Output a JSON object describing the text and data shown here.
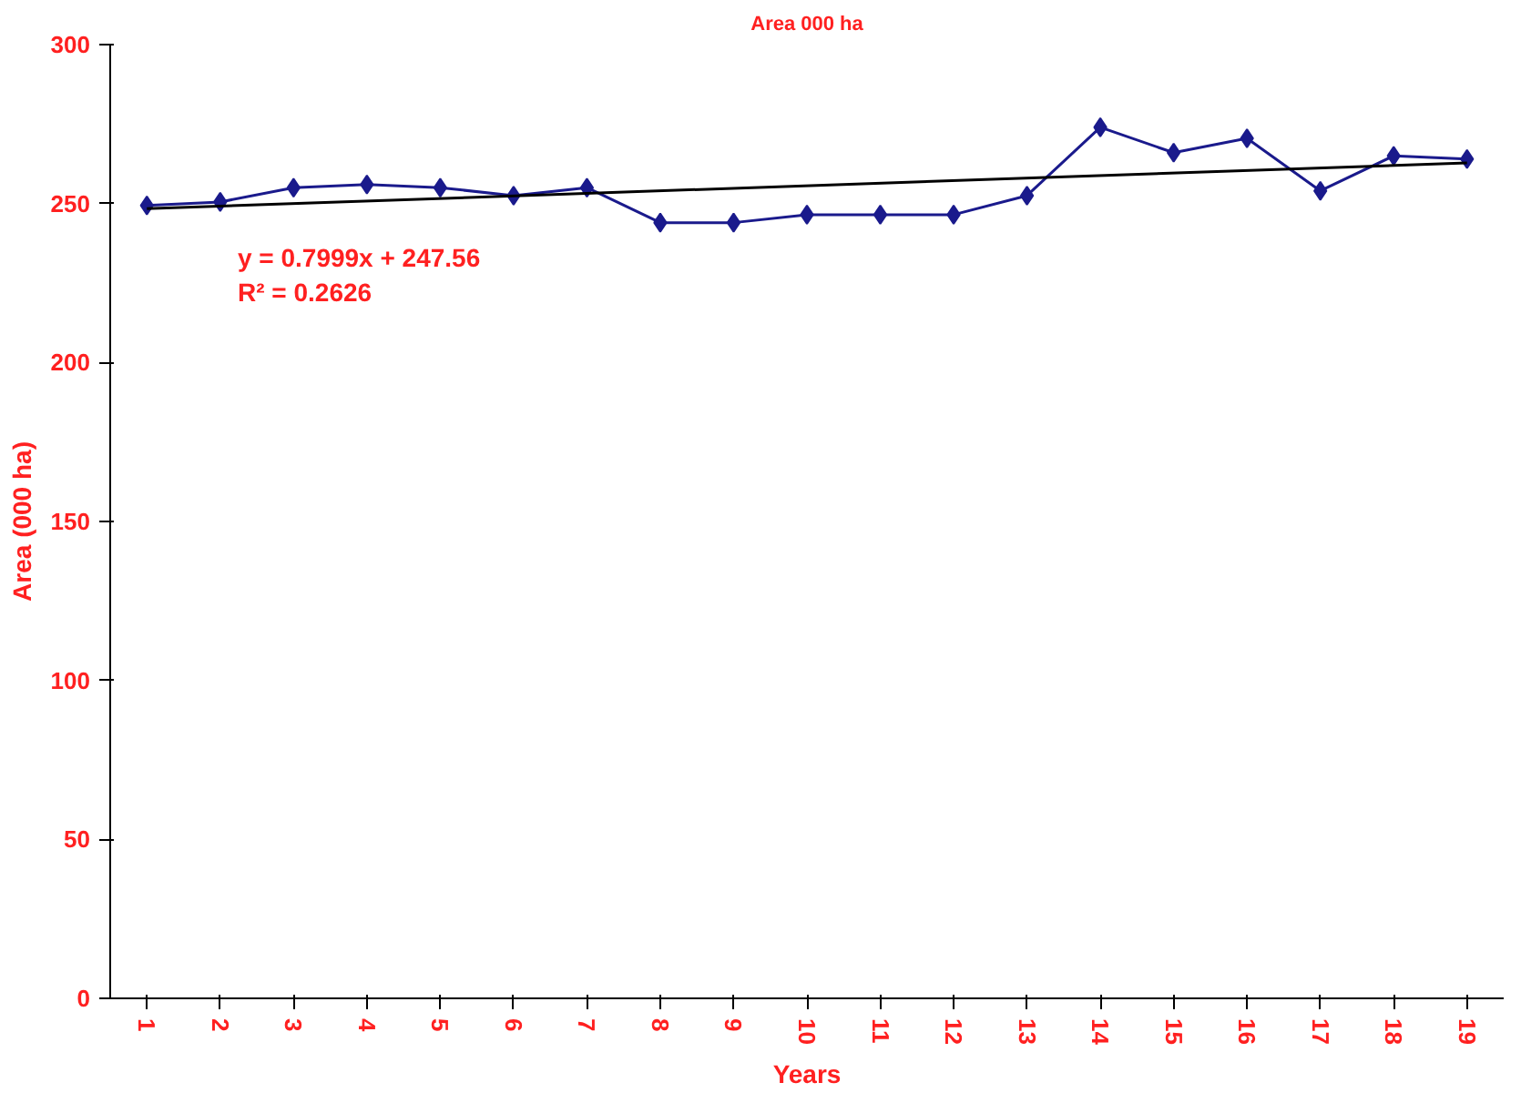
{
  "chart_data": {
    "type": "line",
    "title": "Area 000 ha",
    "xlabel": "Years",
    "ylabel": "Area (000 ha)",
    "categories": [
      "1",
      "2",
      "3",
      "4",
      "5",
      "6",
      "7",
      "8",
      "9",
      "10",
      "11",
      "12",
      "13",
      "14",
      "15",
      "16",
      "17",
      "18",
      "19"
    ],
    "series": [
      {
        "color": "#1a1a8c",
        "marker": "diamond",
        "values": [
          249.4,
          250.5,
          255,
          256,
          255,
          252.5,
          255,
          244,
          244,
          246.5,
          246.5,
          246.5,
          252.5,
          274,
          266,
          270.5,
          254,
          265,
          264
        ]
      },
      {
        "type": "line",
        "color": "#000000",
        "marker": "none",
        "x": [
          "1",
          "19"
        ],
        "values": [
          248.4,
          262.8
        ]
      }
    ],
    "ylim": [
      0,
      300
    ],
    "yticks": [
      0,
      50,
      100,
      150,
      200,
      250,
      300
    ],
    "grid": false,
    "annotations": [
      "y = 0.7999x + 247.56\nR² = 0.2626"
    ]
  }
}
